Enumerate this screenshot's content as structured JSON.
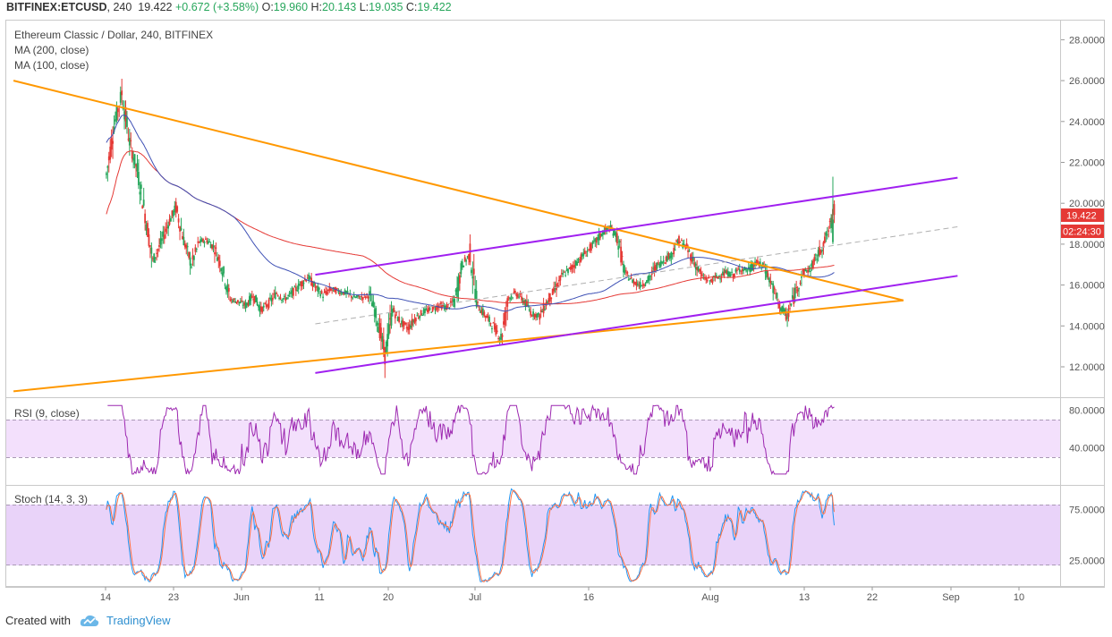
{
  "header": {
    "symbol": "BITFINEX:ETCUSD",
    "interval": "240",
    "last": "19.422",
    "change": "+0.672 (+3.58%)",
    "o_label": "O:",
    "o": "19.960",
    "h_label": "H:",
    "h": "20.143",
    "l_label": "L:",
    "l": "19.035",
    "c_label": "C:",
    "c": "19.422"
  },
  "legend": {
    "title": "Ethereum Classic / Dollar, 240, BITFINEX",
    "ma200": "MA (200, close)",
    "ma100": "MA (100, close)"
  },
  "price_label": "19.422",
  "timer_label": "02:24:30",
  "indicators": {
    "rsi_title": "RSI (9, close)",
    "stoch_title": "Stoch (14, 3, 3)"
  },
  "footer": {
    "created_with": "Created with",
    "brand": "TradingView"
  },
  "colors": {
    "up": "#26a65b",
    "down": "#e53935",
    "channel": "#a020f0",
    "triangle": "#ff9800",
    "ma200": "#e53935",
    "ma100": "#3f51b5",
    "rsi": "#9c27b0",
    "band": "#efd6fb",
    "stoch_k": "#2196f3",
    "stoch_d": "#ff7043",
    "stoch_band": "#e0c4f7",
    "price_tag": "#e53935"
  },
  "chart_data": {
    "type": "candlestick",
    "price_axis": {
      "min": 12,
      "max": 28,
      "ticks": [
        "28.0000",
        "26.0000",
        "24.0000",
        "22.0000",
        "20.0000",
        "18.0000",
        "16.0000",
        "14.0000",
        "12.0000"
      ]
    },
    "rsi_axis": {
      "ticks": [
        "80.0000",
        "40.0000"
      ],
      "band": [
        30,
        70
      ]
    },
    "stoch_axis": {
      "ticks": [
        "75.0000",
        "25.0000"
      ],
      "band": [
        20,
        80
      ]
    },
    "x_ticks": [
      "14",
      "23",
      "Jun",
      "11",
      "20",
      "Jul",
      "16",
      "Aug",
      "13",
      "22",
      "Sep",
      "10"
    ],
    "price_path": [
      [
        "2018-05-06",
        21.4
      ],
      [
        "2018-05-07",
        23.8
      ],
      [
        "2018-05-08",
        25.4
      ],
      [
        "2018-05-09",
        23.0
      ],
      [
        "2018-05-10",
        21.6
      ],
      [
        "2018-05-11",
        19.5
      ],
      [
        "2018-05-12",
        17.2
      ],
      [
        "2018-05-13",
        18.0
      ],
      [
        "2018-05-14",
        19.0
      ],
      [
        "2018-05-15",
        19.8
      ],
      [
        "2018-05-16",
        18.2
      ],
      [
        "2018-05-17",
        17.0
      ],
      [
        "2018-05-18",
        18.1
      ],
      [
        "2018-05-19",
        18.2
      ],
      [
        "2018-05-20",
        17.8
      ],
      [
        "2018-05-21",
        16.8
      ],
      [
        "2018-05-22",
        15.3
      ],
      [
        "2018-05-23",
        15.2
      ],
      [
        "2018-05-24",
        15.0
      ],
      [
        "2018-05-25",
        15.5
      ],
      [
        "2018-05-26",
        14.8
      ],
      [
        "2018-05-27",
        15.1
      ],
      [
        "2018-05-28",
        15.6
      ],
      [
        "2018-05-29",
        15.3
      ],
      [
        "2018-05-30",
        15.6
      ],
      [
        "2018-05-31",
        16.0
      ],
      [
        "2018-06-01",
        16.4
      ],
      [
        "2018-06-02",
        15.9
      ],
      [
        "2018-06-03",
        15.5
      ],
      [
        "2018-06-04",
        15.8
      ],
      [
        "2018-06-05",
        15.7
      ],
      [
        "2018-06-06",
        15.6
      ],
      [
        "2018-06-07",
        15.4
      ],
      [
        "2018-06-08",
        15.4
      ],
      [
        "2018-06-09",
        15.5
      ],
      [
        "2018-06-10",
        14.4
      ],
      [
        "2018-06-11",
        12.6
      ],
      [
        "2018-06-12",
        14.8
      ],
      [
        "2018-06-13",
        14.2
      ],
      [
        "2018-06-14",
        13.9
      ],
      [
        "2018-06-15",
        14.4
      ],
      [
        "2018-06-16",
        14.7
      ],
      [
        "2018-06-17",
        14.8
      ],
      [
        "2018-06-18",
        15.0
      ],
      [
        "2018-06-19",
        14.9
      ],
      [
        "2018-06-20",
        15.2
      ],
      [
        "2018-06-21",
        17.0
      ],
      [
        "2018-06-22",
        17.5
      ],
      [
        "2018-06-23",
        15.0
      ],
      [
        "2018-06-24",
        14.5
      ],
      [
        "2018-06-25",
        14.0
      ],
      [
        "2018-06-26",
        13.4
      ],
      [
        "2018-06-27",
        15.4
      ],
      [
        "2018-06-28",
        15.6
      ],
      [
        "2018-06-29",
        15.2
      ],
      [
        "2018-06-30",
        14.6
      ],
      [
        "2018-07-01",
        14.5
      ],
      [
        "2018-07-02",
        15.2
      ],
      [
        "2018-07-03",
        15.8
      ],
      [
        "2018-07-04",
        16.5
      ],
      [
        "2018-07-05",
        16.8
      ],
      [
        "2018-07-06",
        17.2
      ],
      [
        "2018-07-07",
        17.6
      ],
      [
        "2018-07-08",
        18.0
      ],
      [
        "2018-07-09",
        18.5
      ],
      [
        "2018-07-10",
        18.8
      ],
      [
        "2018-07-11",
        18.4
      ],
      [
        "2018-07-12",
        16.6
      ],
      [
        "2018-07-13",
        16.2
      ],
      [
        "2018-07-14",
        16.0
      ],
      [
        "2018-07-15",
        16.2
      ],
      [
        "2018-07-16",
        16.9
      ],
      [
        "2018-07-17",
        17.2
      ],
      [
        "2018-07-18",
        17.5
      ],
      [
        "2018-07-19",
        18.2
      ],
      [
        "2018-07-20",
        17.8
      ],
      [
        "2018-07-21",
        17.1
      ],
      [
        "2018-07-22",
        16.4
      ],
      [
        "2018-07-23",
        16.2
      ],
      [
        "2018-07-24",
        16.4
      ],
      [
        "2018-07-25",
        16.6
      ],
      [
        "2018-07-26",
        16.5
      ],
      [
        "2018-07-27",
        16.8
      ],
      [
        "2018-07-28",
        16.7
      ],
      [
        "2018-07-29",
        17.1
      ],
      [
        "2018-07-30",
        16.9
      ],
      [
        "2018-07-31",
        16.0
      ],
      [
        "2018-08-01",
        15.0
      ],
      [
        "2018-08-02",
        14.4
      ],
      [
        "2018-08-03",
        15.6
      ],
      [
        "2018-08-04",
        16.6
      ],
      [
        "2018-08-05",
        16.8
      ],
      [
        "2018-08-06",
        17.5
      ],
      [
        "2018-08-07",
        18.3
      ],
      [
        "2018-08-08",
        19.4
      ]
    ]
  }
}
